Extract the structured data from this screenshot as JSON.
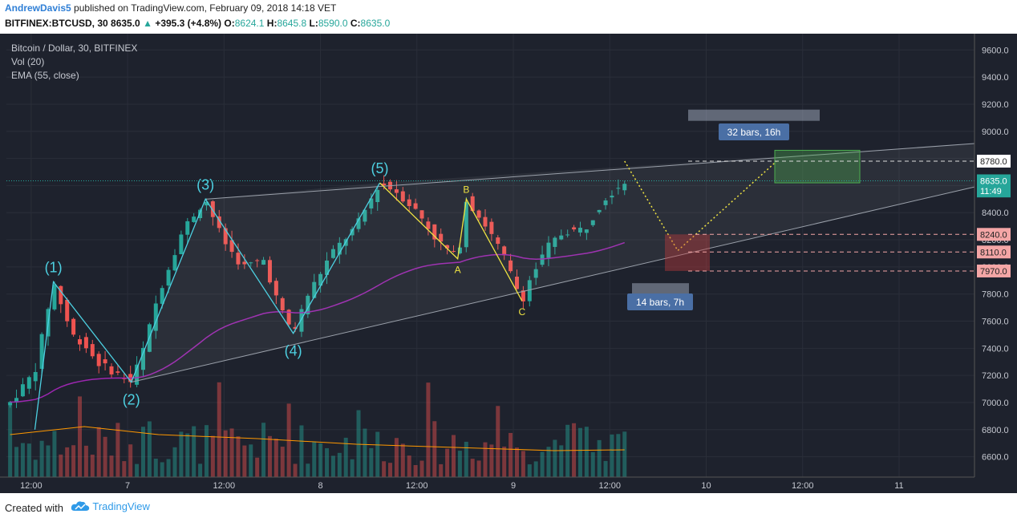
{
  "header": {
    "author": "AndrewDavis5",
    "published": "published on TradingView.com, February 09, 2018 14:18 VET",
    "symbol": "BITFINEX:BTCUSD, 30",
    "last": "8635.0",
    "change": "+395.3 (+4.8%)",
    "o_label": "O:",
    "o": "8624.1",
    "h_label": "H:",
    "h": "8645.8",
    "l_label": "L:",
    "l": "8590.0",
    "c_label": "C:",
    "c": "8635.0"
  },
  "legend": {
    "title": "Bitcoin / Dollar, 30, BITFINEX",
    "vol": "Vol (20)",
    "ema": "EMA (55, close)"
  },
  "chart_data": {
    "type": "candlestick",
    "y_ticks": [
      6600,
      6800,
      7000,
      7200,
      7400,
      7600,
      7800,
      8000,
      8200,
      8400,
      8600,
      8800,
      9000,
      9200,
      9400,
      9600
    ],
    "y_tick_labels": [
      "6600.0",
      "6800.0",
      "7000.0",
      "7200.0",
      "7400.0",
      "7600.0",
      "7800.0",
      "8000.0",
      "8200.0",
      "8400.0",
      "8600.0",
      "8800.0",
      "9000.0",
      "9200.0",
      "9400.0",
      "9600.0"
    ],
    "x_ticks": [
      "12:00",
      "7",
      "12:00",
      "8",
      "12:00",
      "9",
      "12:00",
      "10",
      "12:00",
      "11"
    ],
    "price_tags": [
      {
        "label": "8780.0",
        "value": 8780,
        "color": "#ffffff"
      },
      {
        "label": "8635.0",
        "value": 8635,
        "color": "#26a69a"
      },
      {
        "label": "11:49",
        "value": 8560,
        "color": "#26a69a"
      },
      {
        "label": "8240.0",
        "value": 8240,
        "color": "#f4a6a6"
      },
      {
        "label": "8110.0",
        "value": 8110,
        "color": "#f4a6a6"
      },
      {
        "label": "7970.0",
        "value": 7970,
        "color": "#f4a6a6"
      }
    ],
    "wave_labels": [
      {
        "label": "(1)",
        "x": 35,
        "y": 7890
      },
      {
        "label": "(2)",
        "x": 98,
        "y": 7150
      },
      {
        "label": "(3)",
        "x": 158,
        "y": 8500
      },
      {
        "label": "(4)",
        "x": 229,
        "y": 7510
      },
      {
        "label": "(5)",
        "x": 299,
        "y": 8620
      }
    ],
    "abc_labels": [
      {
        "label": "A",
        "x": 362,
        "y": 8060
      },
      {
        "label": "B",
        "x": 369,
        "y": 8500
      },
      {
        "label": "C",
        "x": 414,
        "y": 7750
      }
    ],
    "annotations": [
      "32 bars, 16h",
      "14 bars, 7h"
    ],
    "ylim": [
      6450,
      9720
    ],
    "xlim": [
      -3,
      780
    ]
  }
}
